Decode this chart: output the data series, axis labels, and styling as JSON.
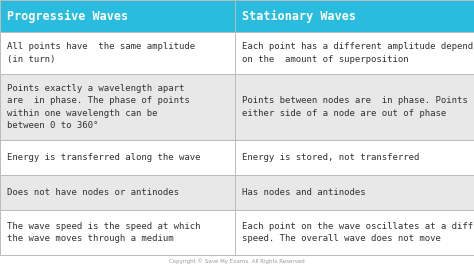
{
  "title_left": "Progressive Waves",
  "title_right": "Stationary Waves",
  "header_color": "#29BCDF",
  "header_text_color": "#FFFFFF",
  "row_colors": [
    "#FFFFFF",
    "#E8E8E8",
    "#FFFFFF",
    "#E8E8E8",
    "#FFFFFF"
  ],
  "cell_text_color": "#333333",
  "border_color": "#BBBBBB",
  "background_color": "#FFFFFF",
  "footer_text": "Copyright © Save My Exams. All Rights Reserved",
  "rows": [
    {
      "left": "All points have  the same amplitude\n(in turn)",
      "right": "Each point has a different amplitude depending\non the  amount of superposition"
    },
    {
      "left": "Points exactly a wavelength apart\nare  in phase. The phase of points\nwithin one wavelength can be\nbetween 0 to 360°",
      "right": "Points between nodes are  in phase. Points on\neither side of a node are out of phase"
    },
    {
      "left": "Energy is transferred along the wave",
      "right": "Energy is stored, not transferred"
    },
    {
      "left": "Does not have nodes or antinodes",
      "right": "Has nodes and antinodes"
    },
    {
      "left": "The wave speed is the speed at which\nthe wave moves through a medium",
      "right": "Each point on the wave oscillates at a different\nspeed. The overall wave does not move"
    }
  ],
  "font_family": "monospace",
  "header_fontsize": 8.5,
  "cell_fontsize": 6.5,
  "footer_fontsize": 4.0
}
